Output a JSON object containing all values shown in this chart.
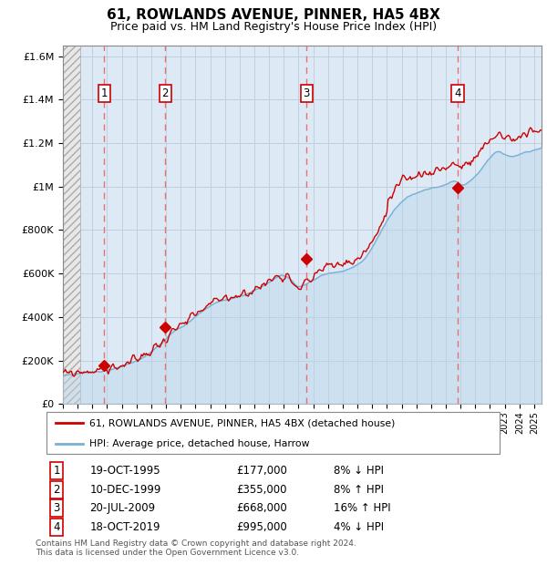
{
  "title": "61, ROWLANDS AVENUE, PINNER, HA5 4BX",
  "subtitle": "Price paid vs. HM Land Registry's House Price Index (HPI)",
  "footer1": "Contains HM Land Registry data © Crown copyright and database right 2024.",
  "footer2": "This data is licensed under the Open Government Licence v3.0.",
  "legend_label1": "61, ROWLANDS AVENUE, PINNER, HA5 4BX (detached house)",
  "legend_label2": "HPI: Average price, detached house, Harrow",
  "sales": [
    {
      "num": 1,
      "date_label": "19-OCT-1995",
      "price": 177000,
      "hpi_pct": "8% ↓ HPI",
      "year": 1995.8
    },
    {
      "num": 2,
      "date_label": "10-DEC-1999",
      "price": 355000,
      "hpi_pct": "8% ↑ HPI",
      "year": 1999.95
    },
    {
      "num": 3,
      "date_label": "20-JUL-2009",
      "price": 668000,
      "hpi_pct": "16% ↑ HPI",
      "year": 2009.55
    },
    {
      "num": 4,
      "date_label": "18-OCT-2019",
      "price": 995000,
      "hpi_pct": "4% ↓ HPI",
      "year": 2019.8
    }
  ],
  "hpi_color": "#b8d4e8",
  "price_color": "#cc0000",
  "sale_marker_color": "#cc0000",
  "dashed_line_color": "#e87070",
  "grid_color": "#c0d0e0",
  "bg_color": "#ddeaf5",
  "ylim": [
    0,
    1650000
  ],
  "xlim_start": 1993,
  "xlim_end": 2025.5,
  "yticks": [
    0,
    200000,
    400000,
    600000,
    800000,
    1000000,
    1200000,
    1400000,
    1600000
  ]
}
